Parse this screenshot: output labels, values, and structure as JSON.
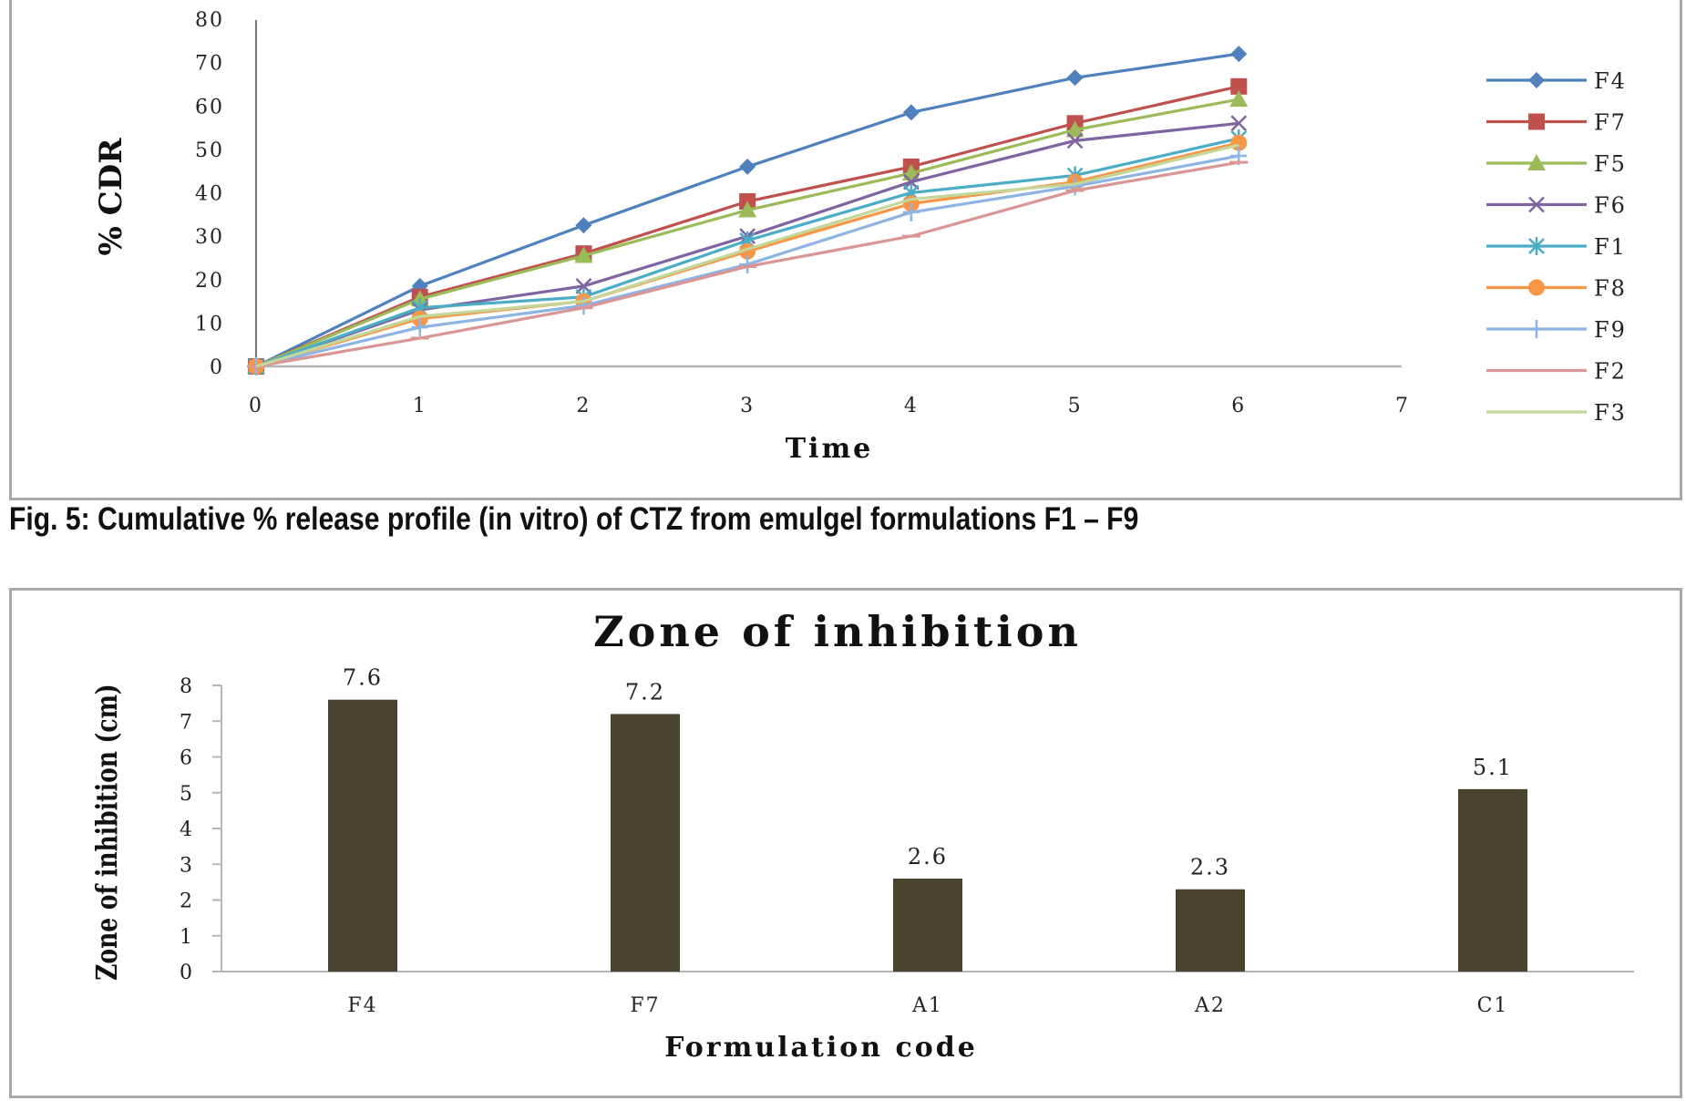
{
  "caption": "Fig. 5: Cumulative % release profile (in vitro) of CTZ from emulgel formulations F1 – F9",
  "chart_data": [
    {
      "type": "line",
      "title": "",
      "xlabel": "Time",
      "ylabel": "% CDR",
      "xlim": [
        0,
        7
      ],
      "ylim": [
        0,
        80
      ],
      "x_ticks": [
        "0",
        "1",
        "2",
        "3",
        "4",
        "5",
        "6",
        "7"
      ],
      "y_ticks": [
        "0",
        "10",
        "20",
        "30",
        "40",
        "50",
        "60",
        "70",
        "80"
      ],
      "grid": false,
      "legend_position": "right",
      "x": [
        0,
        1,
        2,
        3,
        4,
        5,
        6
      ],
      "series": [
        {
          "name": "F4",
          "color": "#4f81bd",
          "marker": "diamond",
          "values": [
            0,
            18.5,
            32.5,
            46,
            58.5,
            66.5,
            72
          ]
        },
        {
          "name": "F7",
          "color": "#c0504d",
          "marker": "square",
          "values": [
            0,
            16,
            26,
            38,
            46,
            56,
            64.5
          ]
        },
        {
          "name": "F5",
          "color": "#9bbb59",
          "marker": "triangle",
          "values": [
            0,
            15.5,
            25.5,
            36,
            44.5,
            54.5,
            61.5
          ]
        },
        {
          "name": "F6",
          "color": "#8064a2",
          "marker": "x",
          "values": [
            0,
            13,
            18.5,
            30,
            42.5,
            52,
            56
          ]
        },
        {
          "name": "F1",
          "color": "#4bacc6",
          "marker": "star",
          "values": [
            0,
            13.5,
            16,
            29,
            40,
            44,
            52.5
          ]
        },
        {
          "name": "F8",
          "color": "#f79646",
          "marker": "circle",
          "values": [
            0,
            11,
            15,
            26.5,
            37.5,
            42.5,
            51.5
          ]
        },
        {
          "name": "F9",
          "color": "#8eb4e3",
          "marker": "plus",
          "values": [
            0,
            9,
            14,
            23.5,
            35.5,
            41.5,
            48.5
          ]
        },
        {
          "name": "F2",
          "color": "#d99694",
          "marker": "dash",
          "values": [
            0,
            6.5,
            13.5,
            23,
            30,
            40.5,
            47
          ]
        },
        {
          "name": "F3",
          "color": "#c4d79b",
          "marker": "none",
          "values": [
            0,
            11.5,
            15,
            27,
            38.5,
            42,
            51
          ]
        }
      ]
    },
    {
      "type": "bar",
      "title": "Zone of inhibition",
      "xlabel": "Formulation code",
      "ylabel": "Zone of inhibition (cm)",
      "ylim": [
        0,
        8
      ],
      "y_ticks": [
        "0",
        "1",
        "2",
        "3",
        "4",
        "5",
        "6",
        "7",
        "8"
      ],
      "grid": false,
      "bar_color": "#4a4330",
      "categories": [
        "F4",
        "F7",
        "A1",
        "A2",
        "C1"
      ],
      "values": [
        7.6,
        7.2,
        2.6,
        2.3,
        5.1
      ],
      "data_labels": [
        "7.6",
        "7.2",
        "2.6",
        "2.3",
        "5.1"
      ]
    }
  ]
}
